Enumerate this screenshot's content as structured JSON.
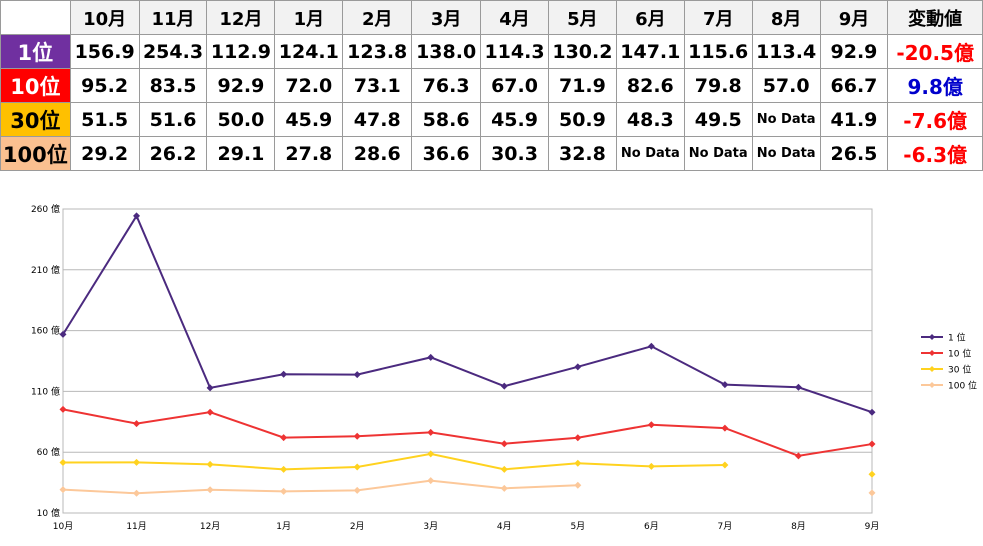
{
  "table": {
    "headers": [
      "10月",
      "11月",
      "12月",
      "1月",
      "2月",
      "3月",
      "4月",
      "5月",
      "6月",
      "7月",
      "8月",
      "9月",
      "変動値"
    ],
    "rows": [
      {
        "label": "1位",
        "label_bg": "#7030a0",
        "label_color": "#ffffff",
        "cells": [
          "156.9",
          "254.3",
          "112.9",
          "124.1",
          "123.8",
          "138.0",
          "114.3",
          "130.2",
          "147.1",
          "115.6",
          "113.4",
          "92.9"
        ],
        "change": "-20.5億",
        "change_color": "#ff0000"
      },
      {
        "label": "10位",
        "label_bg": "#ff0000",
        "label_color": "#ffffff",
        "cells": [
          "95.2",
          "83.5",
          "92.9",
          "72.0",
          "73.1",
          "76.3",
          "67.0",
          "71.9",
          "82.6",
          "79.8",
          "57.0",
          "66.7"
        ],
        "change": "9.8億",
        "change_color": "#0000cc"
      },
      {
        "label": "30位",
        "label_bg": "#ffc000",
        "label_color": "#000000",
        "cells": [
          "51.5",
          "51.6",
          "50.0",
          "45.9",
          "47.8",
          "58.6",
          "45.9",
          "50.9",
          "48.3",
          "49.5",
          "No Data",
          "41.9"
        ],
        "change": "-7.6億",
        "change_color": "#ff0000"
      },
      {
        "label": "100位",
        "label_bg": "#fac090",
        "label_color": "#000000",
        "cells": [
          "29.2",
          "26.2",
          "29.1",
          "27.8",
          "28.6",
          "36.6",
          "30.3",
          "32.8",
          "No Data",
          "No Data",
          "No Data",
          "26.5"
        ],
        "change": "-6.3億",
        "change_color": "#ff0000"
      }
    ]
  },
  "chart_data": {
    "type": "line",
    "categories": [
      "10月",
      "11月",
      "12月",
      "1月",
      "2月",
      "3月",
      "4月",
      "5月",
      "6月",
      "7月",
      "8月",
      "9月"
    ],
    "ylim": [
      10,
      260
    ],
    "yticks": [
      10,
      60,
      110,
      160,
      210,
      260
    ],
    "ytick_labels": [
      "10 億",
      "60 億",
      "110 億",
      "160 億",
      "210 億",
      "260 億"
    ],
    "grid": true,
    "legend_position": "right",
    "series": [
      {
        "name": "1 位",
        "color": "#4b2a7f",
        "values": [
          156.9,
          254.3,
          112.9,
          124.1,
          123.8,
          138.0,
          114.3,
          130.2,
          147.1,
          115.6,
          113.4,
          92.9
        ]
      },
      {
        "name": "10 位",
        "color": "#ee3333",
        "values": [
          95.2,
          83.5,
          92.9,
          72.0,
          73.1,
          76.3,
          67.0,
          71.9,
          82.6,
          79.8,
          57.0,
          66.7
        ]
      },
      {
        "name": "30 位",
        "color": "#ffd21f",
        "values": [
          51.5,
          51.6,
          50.0,
          45.9,
          47.8,
          58.6,
          45.9,
          50.9,
          48.3,
          49.5,
          null,
          41.9
        ]
      },
      {
        "name": "100 位",
        "color": "#fcc89a",
        "values": [
          29.2,
          26.2,
          29.1,
          27.8,
          28.6,
          36.6,
          30.3,
          32.8,
          null,
          null,
          null,
          26.5
        ]
      }
    ]
  }
}
